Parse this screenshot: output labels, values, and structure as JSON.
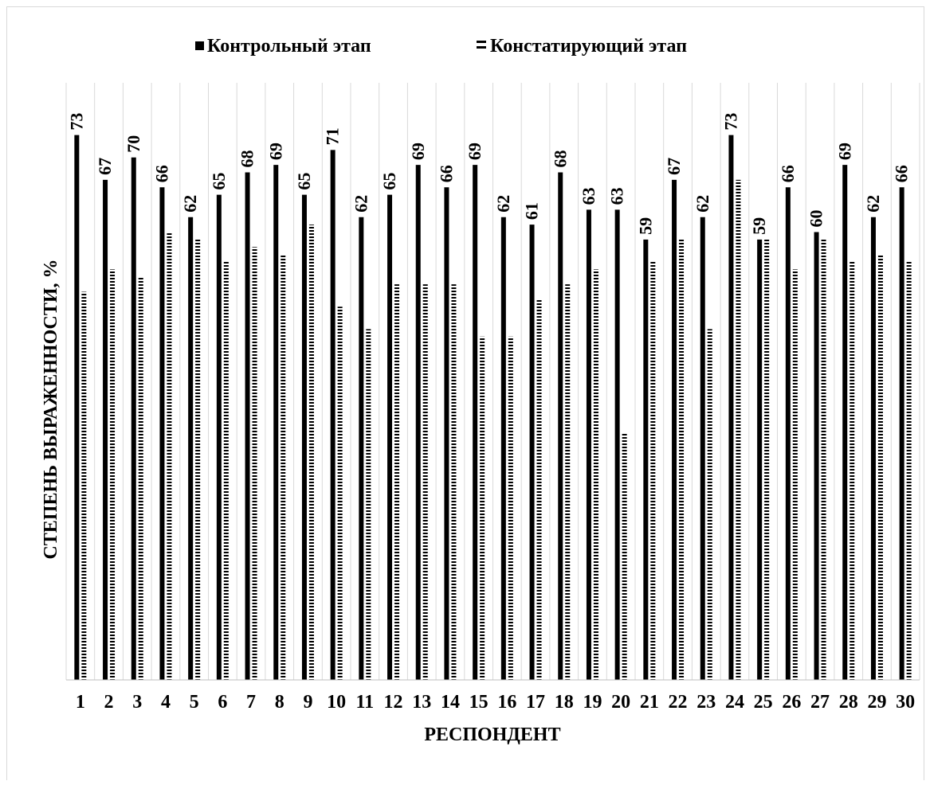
{
  "chart_data": {
    "type": "bar",
    "title": "",
    "xlabel": "РЕСПОНДЕНТ",
    "ylabel": "СТЕПЕНЬ ВЫРАЖЕННОСТИ, %",
    "ylim": [
      0,
      80
    ],
    "grid": "vertical",
    "legend_position": "top",
    "categories": [
      "1",
      "2",
      "3",
      "4",
      "5",
      "6",
      "7",
      "8",
      "9",
      "10",
      "11",
      "12",
      "13",
      "14",
      "15",
      "16",
      "17",
      "18",
      "19",
      "20",
      "21",
      "22",
      "23",
      "24",
      "25",
      "26",
      "27",
      "28",
      "29",
      "30"
    ],
    "series": [
      {
        "name": "Контрольный этап",
        "style": "solid",
        "color": "#000000",
        "values": [
          73,
          67,
          70,
          66,
          62,
          65,
          68,
          69,
          65,
          71,
          62,
          65,
          69,
          66,
          69,
          62,
          61,
          68,
          63,
          63,
          59,
          67,
          62,
          73,
          59,
          66,
          60,
          69,
          62,
          66
        ]
      },
      {
        "name": "Констатирующий этап",
        "style": "dotted",
        "color": "#000000",
        "values": [
          52,
          55,
          54,
          60,
          59,
          56,
          58,
          57,
          61,
          50,
          47,
          53,
          53,
          53,
          46,
          46,
          51,
          53,
          55,
          33,
          56,
          59,
          47,
          67,
          59,
          55,
          59,
          56,
          57,
          56
        ]
      }
    ],
    "data_labels_series": 0
  }
}
